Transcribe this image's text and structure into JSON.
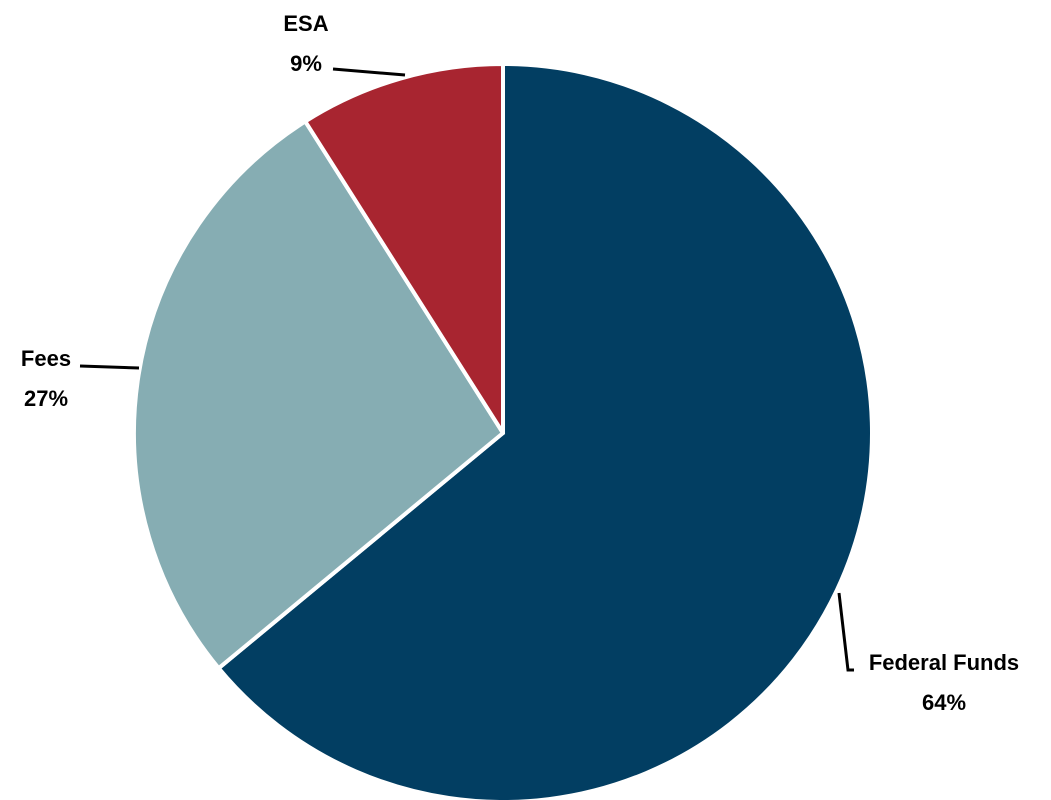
{
  "chart_data": {
    "type": "pie",
    "title": "",
    "start_angle_deg": 0,
    "direction": "clockwise",
    "legend": "none",
    "slices": [
      {
        "label": "Federal Funds",
        "value": 64,
        "value_label": "64%",
        "color": "#023e62"
      },
      {
        "label": "Fees",
        "value": 27,
        "value_label": "27%",
        "color": "#86adb3"
      },
      {
        "label": "ESA",
        "value": 9,
        "value_label": "9%",
        "color": "#a82530"
      }
    ]
  }
}
